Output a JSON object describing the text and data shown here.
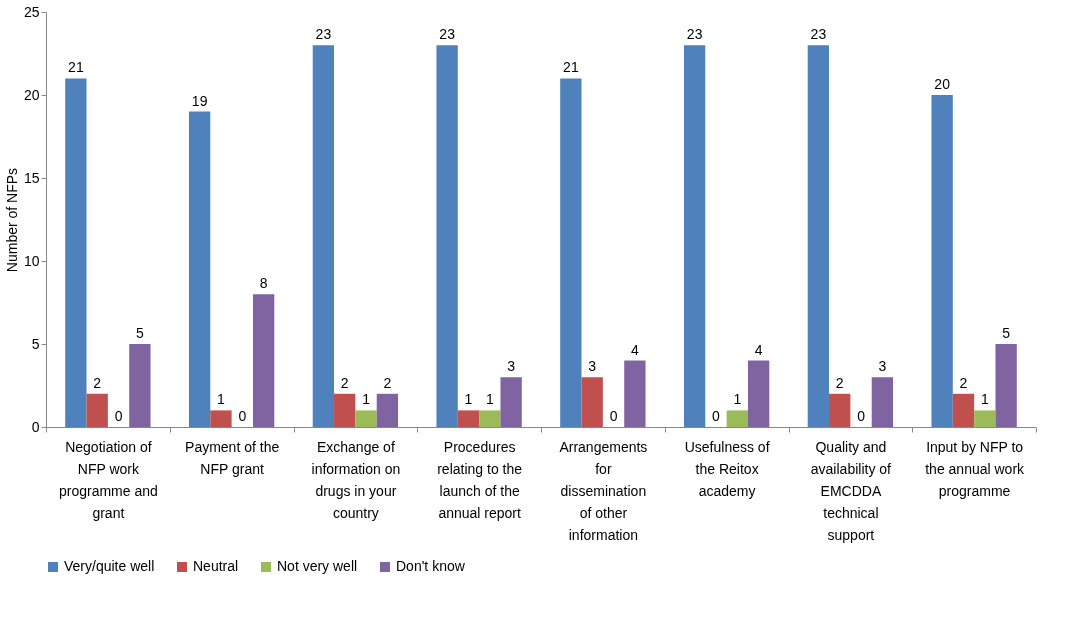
{
  "chart_data": {
    "type": "bar",
    "ylabel": "Number of NFPs",
    "categories": [
      "Negotiation of NFP work programme and grant",
      "Payment of the NFP grant",
      "Exchange of information on drugs in your country",
      "Procedures relating to the launch of the annual report",
      "Arrangements for dissemination of other information",
      "Usefulness of the Reitox academy",
      "Quality and availability of EMCDDA technical support",
      "Input by NFP to the annual work programme"
    ],
    "series": [
      {
        "name": "Very/quite well",
        "color": "#4f81bd",
        "values": [
          21,
          19,
          23,
          23,
          21,
          23,
          23,
          20
        ]
      },
      {
        "name": "Neutral",
        "color": "#c0504d",
        "values": [
          2,
          1,
          2,
          1,
          3,
          0,
          2,
          2
        ]
      },
      {
        "name": "Not very well",
        "color": "#9bbb59",
        "values": [
          0,
          0,
          1,
          1,
          0,
          1,
          0,
          1
        ]
      },
      {
        "name": "Don't know",
        "color": "#8064a2",
        "values": [
          5,
          8,
          2,
          3,
          4,
          4,
          3,
          5
        ]
      }
    ],
    "ylim": [
      0,
      25
    ],
    "yticks": [
      0,
      5,
      10,
      15,
      20,
      25
    ],
    "grid": false,
    "legend": "bottom",
    "data_labels": true
  }
}
